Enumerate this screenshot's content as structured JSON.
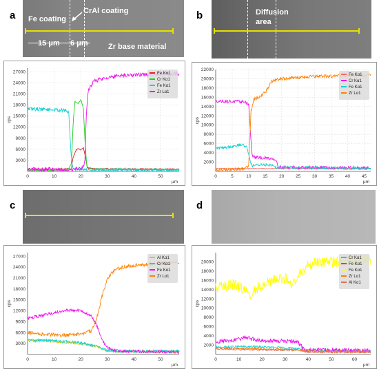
{
  "panels": [
    {
      "letter": "a",
      "sem_labels": [
        "Fe coating",
        "CrAl coating",
        "15 μm",
        "6 μm",
        "Zr base material"
      ],
      "chart_data": {
        "type": "line",
        "xlabel": "μm",
        "ylabel": "cps",
        "xlim": [
          0,
          57
        ],
        "ylim": [
          0,
          28000
        ],
        "xticks": [
          0,
          10,
          20,
          30,
          40,
          50
        ],
        "yticks": [
          3000,
          6000,
          9000,
          12000,
          15000,
          18000,
          21000,
          24000,
          27000
        ],
        "legend": "top-right",
        "grid": true,
        "series": [
          {
            "name": "Fe Kα1",
            "color": "#e02020",
            "noise": 150,
            "points": [
              [
                0,
                600
              ],
              [
                15,
                650
              ],
              [
                16.5,
                700
              ],
              [
                17,
                3500
              ],
              [
                18,
                5500
              ],
              [
                19,
                6200
              ],
              [
                20,
                5800
              ],
              [
                21,
                6400
              ],
              [
                22,
                3000
              ],
              [
                22.5,
                900
              ],
              [
                25,
                700
              ],
              [
                57,
                600
              ]
            ]
          },
          {
            "name": "Cr Kα1",
            "color": "#22cc22",
            "noise": 150,
            "points": [
              [
                0,
                300
              ],
              [
                15,
                300
              ],
              [
                16.5,
                2000
              ],
              [
                17.2,
                14000
              ],
              [
                17.8,
                19000
              ],
              [
                19,
                18500
              ],
              [
                20,
                19500
              ],
              [
                21,
                17000
              ],
              [
                21.6,
                8000
              ],
              [
                22.3,
                1200
              ],
              [
                25,
                600
              ],
              [
                57,
                400
              ]
            ]
          },
          {
            "name": "Fe Kα1",
            "color": "#18d0d0",
            "noise": 500,
            "points": [
              [
                0,
                17000
              ],
              [
                8,
                16800
              ],
              [
                14,
                16500
              ],
              [
                15.5,
                16000
              ],
              [
                16.2,
                6000
              ],
              [
                17,
                800
              ],
              [
                21,
                600
              ],
              [
                22.3,
                400
              ],
              [
                57,
                300
              ]
            ]
          },
          {
            "name": "Zr Lα1",
            "color": "#ee10ee",
            "noise": 550,
            "points": [
              [
                0,
                500
              ],
              [
                16,
                600
              ],
              [
                20,
                800
              ],
              [
                21.5,
                2000
              ],
              [
                22,
                14000
              ],
              [
                22.8,
                22000
              ],
              [
                25,
                24500
              ],
              [
                30,
                25500
              ],
              [
                40,
                26200
              ],
              [
                57,
                26500
              ]
            ]
          }
        ]
      }
    },
    {
      "letter": "b",
      "sem_labels": [
        "Diffusion",
        "area"
      ],
      "chart_data": {
        "type": "line",
        "xlabel": "μm",
        "ylabel": "cps",
        "xlim": [
          0,
          47
        ],
        "ylim": [
          0,
          22000
        ],
        "xticks": [
          0,
          5,
          10,
          15,
          20,
          25,
          30,
          35,
          40,
          45
        ],
        "yticks": [
          2000,
          4000,
          6000,
          8000,
          10000,
          12000,
          14000,
          16000,
          18000,
          20000,
          22000
        ],
        "legend": "top-right",
        "grid": true,
        "series": [
          {
            "name": "Fe Kα1",
            "color": "#ff6666",
            "noise": 100,
            "points": [
              [
                0,
                600
              ],
              [
                47,
                600
              ]
            ]
          },
          {
            "name": "Cr Kα1",
            "color": "#ee10ee",
            "noise": 350,
            "points": [
              [
                0,
                15200
              ],
              [
                9,
                15000
              ],
              [
                10,
                14500
              ],
              [
                10.6,
                8000
              ],
              [
                11,
                3500
              ],
              [
                12,
                3000
              ],
              [
                17,
                2800
              ],
              [
                18.3,
                2500
              ],
              [
                19,
                900
              ],
              [
                47,
                700
              ]
            ]
          },
          {
            "name": "Fe Kα1",
            "color": "#18d0d0",
            "noise": 300,
            "points": [
              [
                0,
                5000
              ],
              [
                4,
                5300
              ],
              [
                8,
                5800
              ],
              [
                9.5,
                5200
              ],
              [
                10.2,
                3000
              ],
              [
                11,
                1200
              ],
              [
                14,
                1500
              ],
              [
                17,
                1400
              ],
              [
                18.5,
                900
              ],
              [
                47,
                600
              ]
            ]
          },
          {
            "name": "Zr Lα1",
            "color": "#ff8000",
            "noise": 350,
            "points": [
              [
                0,
                300
              ],
              [
                8,
                500
              ],
              [
                10,
                1200
              ],
              [
                10.7,
                13000
              ],
              [
                11.5,
                15500
              ],
              [
                14,
                16500
              ],
              [
                15.5,
                17500
              ],
              [
                17,
                19500
              ],
              [
                20,
                20000
              ],
              [
                30,
                20500
              ],
              [
                47,
                20800
              ]
            ]
          }
        ]
      }
    },
    {
      "letter": "c",
      "sem_labels": [],
      "chart_data": {
        "type": "line",
        "xlabel": "μm",
        "ylabel": "cps",
        "xlim": [
          0,
          57
        ],
        "ylim": [
          0,
          28000
        ],
        "xticks": [
          0,
          10,
          20,
          30,
          40,
          50
        ],
        "yticks": [
          3000,
          6000,
          9000,
          12000,
          15000,
          18000,
          21000,
          24000,
          27000
        ],
        "legend": "top-right",
        "grid": false,
        "series": [
          {
            "name": "Al Kα1",
            "color": "#d4c800",
            "noise": 350,
            "points": [
              [
                0,
                3800
              ],
              [
                10,
                3600
              ],
              [
                20,
                3000
              ],
              [
                26,
                2200
              ],
              [
                30,
                1100
              ],
              [
                34,
                800
              ],
              [
                57,
                800
              ]
            ]
          },
          {
            "name": "Cr Kα1",
            "color": "#18d0d0",
            "noise": 350,
            "points": [
              [
                0,
                4000
              ],
              [
                10,
                3800
              ],
              [
                20,
                3200
              ],
              [
                26,
                2200
              ],
              [
                30,
                1100
              ],
              [
                34,
                900
              ],
              [
                57,
                900
              ]
            ]
          },
          {
            "name": "Fe Kα1",
            "color": "#ee10ee",
            "noise": 400,
            "points": [
              [
                0,
                10000
              ],
              [
                5,
                10600
              ],
              [
                10,
                11500
              ],
              [
                15,
                12200
              ],
              [
                20,
                12000
              ],
              [
                24,
                10500
              ],
              [
                26,
                8000
              ],
              [
                28,
                4000
              ],
              [
                30,
                2000
              ],
              [
                32,
                1200
              ],
              [
                35,
                900
              ],
              [
                57,
                700
              ]
            ]
          },
          {
            "name": "Zr Lα1",
            "color": "#ff8000",
            "noise": 500,
            "points": [
              [
                0,
                6000
              ],
              [
                5,
                5600
              ],
              [
                10,
                5400
              ],
              [
                15,
                5300
              ],
              [
                20,
                5600
              ],
              [
                24,
                6500
              ],
              [
                26,
                10000
              ],
              [
                28,
                16000
              ],
              [
                30,
                21000
              ],
              [
                33,
                23500
              ],
              [
                40,
                24500
              ],
              [
                50,
                25000
              ],
              [
                57,
                25200
              ]
            ]
          }
        ]
      }
    },
    {
      "letter": "d",
      "sem_labels": [],
      "chart_data": {
        "type": "line",
        "xlabel": "μm",
        "ylabel": "cps",
        "xlim": [
          0,
          67
        ],
        "ylim": [
          0,
          22000
        ],
        "xticks": [
          0,
          10,
          20,
          30,
          40,
          50,
          60
        ],
        "yticks": [
          2000,
          4000,
          6000,
          8000,
          10000,
          12000,
          14000,
          16000,
          18000,
          20000
        ],
        "legend": "top-right",
        "grid": false,
        "series": [
          {
            "name": "Cr Kα1",
            "color": "#18d0d0",
            "noise": 250,
            "points": [
              [
                0,
                1500
              ],
              [
                10,
                1700
              ],
              [
                20,
                1600
              ],
              [
                30,
                1400
              ],
              [
                36,
                1300
              ],
              [
                38,
                900
              ],
              [
                67,
                700
              ]
            ]
          },
          {
            "name": "Fe Kα1",
            "color": "#ee10ee",
            "noise": 450,
            "points": [
              [
                0,
                2800
              ],
              [
                8,
                3000
              ],
              [
                13,
                3800
              ],
              [
                16,
                3300
              ],
              [
                20,
                3000
              ],
              [
                30,
                2900
              ],
              [
                35,
                2800
              ],
              [
                37,
                2000
              ],
              [
                38,
                1000
              ],
              [
                67,
                800
              ]
            ]
          },
          {
            "name": "Fe Kα1",
            "color": "#ffff00",
            "noise": 1200,
            "points": [
              [
                0,
                14500
              ],
              [
                4,
                14800
              ],
              [
                8,
                15200
              ],
              [
                12,
                14000
              ],
              [
                15,
                12500
              ],
              [
                17,
                14000
              ],
              [
                22,
                15500
              ],
              [
                27,
                16500
              ],
              [
                30,
                16500
              ],
              [
                33,
                15000
              ],
              [
                35,
                16000
              ],
              [
                37,
                18000
              ],
              [
                40,
                19500
              ],
              [
                50,
                20000
              ],
              [
                67,
                20500
              ]
            ]
          },
          {
            "name": "Zr Lα1",
            "color": "#ff8000",
            "noise": 200,
            "points": [
              [
                0,
                1400
              ],
              [
                10,
                1300
              ],
              [
                20,
                1200
              ],
              [
                30,
                1100
              ],
              [
                37,
                1000
              ],
              [
                40,
                700
              ],
              [
                67,
                600
              ]
            ]
          },
          {
            "name": "Al Kα1",
            "color": "#e07050",
            "noise": 200,
            "points": [
              [
                0,
                1200
              ],
              [
                10,
                1100
              ],
              [
                20,
                1000
              ],
              [
                30,
                950
              ],
              [
                37,
                900
              ],
              [
                40,
                500
              ],
              [
                67,
                500
              ]
            ]
          }
        ]
      }
    }
  ]
}
